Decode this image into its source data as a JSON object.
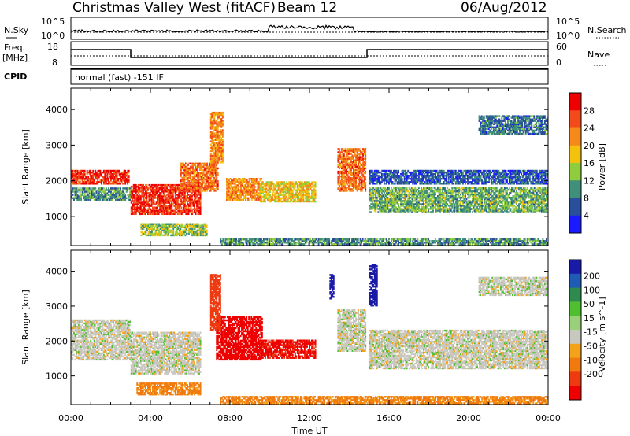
{
  "header": {
    "title": "Christmas Valley West (fitACF)",
    "beam": "Beam 12",
    "date": "06/Aug/2012"
  },
  "params": {
    "nsky_label": "N.Sky",
    "nsearch_label": "N.Search",
    "nsky_ticks": [
      "10^5",
      "10^0"
    ],
    "nsearch_ticks": [
      "10^5",
      "10^0"
    ],
    "freq_label_1": "Freq.",
    "freq_label_2": "[MHz]",
    "freq_ticks": [
      "18",
      "8"
    ],
    "nave_label": "Nave",
    "nave_ticks": [
      "60",
      "0"
    ],
    "cpid_label": "CPID",
    "cpid_text": "normal (fast) -151 IF"
  },
  "chart_data": [
    {
      "type": "heatmap",
      "name": "power",
      "xlabel": "",
      "ylabel": "Slant Range [km]",
      "x_ticks": [
        "00:00",
        "04:00",
        "08:00",
        "12:00",
        "16:00",
        "20:00",
        "00:00"
      ],
      "y_ticks": [
        1000,
        2000,
        3000,
        4000
      ],
      "ylim": [
        180,
        4600
      ],
      "xlim_hours": [
        0,
        24
      ],
      "colorbar": {
        "label": "Power [dB]",
        "ticks": [
          4,
          8,
          12,
          16,
          20,
          24,
          28
        ],
        "range": [
          0,
          32
        ],
        "colors": [
          "#1a1aff",
          "#2a4f9a",
          "#3f8f7a",
          "#8fcd3f",
          "#f4c20d",
          "#f5891c",
          "#f24a1a",
          "#ee0000"
        ]
      },
      "regions": [
        {
          "hours": [
            0,
            2.9
          ],
          "range_km": [
            1900,
            2300
          ],
          "level": 28
        },
        {
          "hours": [
            0,
            3.0
          ],
          "range_km": [
            1450,
            1800
          ],
          "level": 10
        },
        {
          "hours": [
            3.0,
            6.5
          ],
          "range_km": [
            1050,
            1900
          ],
          "level": 28
        },
        {
          "hours": [
            5.5,
            7.4
          ],
          "range_km": [
            1700,
            2500
          ],
          "level": 24
        },
        {
          "hours": [
            7.0,
            7.6
          ],
          "range_km": [
            2500,
            3900
          ],
          "level": 22
        },
        {
          "hours": [
            3.5,
            6.8
          ],
          "range_km": [
            450,
            800
          ],
          "level": 14
        },
        {
          "hours": [
            7.8,
            9.6
          ],
          "range_km": [
            1450,
            2050
          ],
          "level": 22
        },
        {
          "hours": [
            9.5,
            12.3
          ],
          "range_km": [
            1400,
            1950
          ],
          "level": 18
        },
        {
          "hours": [
            13.4,
            14.8
          ],
          "range_km": [
            1700,
            2900
          ],
          "level": 24
        },
        {
          "hours": [
            15.0,
            24.0
          ],
          "range_km": [
            1100,
            1800
          ],
          "level": 12
        },
        {
          "hours": [
            15.0,
            24.0
          ],
          "range_km": [
            1900,
            2300
          ],
          "level": 6
        },
        {
          "hours": [
            20.5,
            24.0
          ],
          "range_km": [
            3300,
            3800
          ],
          "level": 8
        },
        {
          "hours": [
            7.5,
            24.0
          ],
          "range_km": [
            200,
            350
          ],
          "level": 10
        }
      ]
    },
    {
      "type": "heatmap",
      "name": "velocity",
      "xlabel": "Time UT",
      "ylabel": "Slant Range [km]",
      "x_ticks": [
        "00:00",
        "04:00",
        "08:00",
        "12:00",
        "16:00",
        "20:00",
        "00:00"
      ],
      "y_ticks": [
        1000,
        2000,
        3000,
        4000
      ],
      "ylim": [
        180,
        4600
      ],
      "xlim_hours": [
        0,
        24
      ],
      "colorbar": {
        "label": "Velocity [m s^-1]",
        "ticks": [
          200,
          100,
          50,
          15,
          -15,
          -50,
          -100,
          -200
        ],
        "colors": [
          "#1a1aa8",
          "#1f5ab4",
          "#2f8a4f",
          "#4fbf2f",
          "#9ad07a",
          "#c8c8c0",
          "#f4a21a",
          "#f07a10",
          "#ee3a10",
          "#ee0000"
        ]
      },
      "regions": [
        {
          "hours": [
            0,
            3.0
          ],
          "range_km": [
            1450,
            2600
          ],
          "velocity": 0
        },
        {
          "hours": [
            3.0,
            6.5
          ],
          "range_km": [
            1050,
            2250
          ],
          "velocity": 0
        },
        {
          "hours": [
            7.3,
            9.6
          ],
          "range_km": [
            1450,
            2700
          ],
          "velocity": -200
        },
        {
          "hours": [
            9.5,
            12.3
          ],
          "range_km": [
            1500,
            2000
          ],
          "velocity": -180
        },
        {
          "hours": [
            7.0,
            7.5
          ],
          "range_km": [
            2300,
            3900
          ],
          "velocity": -150
        },
        {
          "hours": [
            3.3,
            6.5
          ],
          "range_km": [
            450,
            800
          ],
          "velocity": -60
        },
        {
          "hours": [
            13.0,
            13.2
          ],
          "range_km": [
            3200,
            3900
          ],
          "velocity": 200
        },
        {
          "hours": [
            13.4,
            14.8
          ],
          "range_km": [
            1700,
            2900
          ],
          "velocity": 0
        },
        {
          "hours": [
            15.0,
            24.0
          ],
          "range_km": [
            1200,
            2300
          ],
          "velocity": 0
        },
        {
          "hours": [
            15.0,
            15.4
          ],
          "range_km": [
            3000,
            4200
          ],
          "velocity": 200
        },
        {
          "hours": [
            20.5,
            24.0
          ],
          "range_km": [
            3300,
            3800
          ],
          "velocity": 0
        },
        {
          "hours": [
            7.5,
            24.0
          ],
          "range_km": [
            200,
            400
          ],
          "velocity": -60
        }
      ]
    }
  ]
}
